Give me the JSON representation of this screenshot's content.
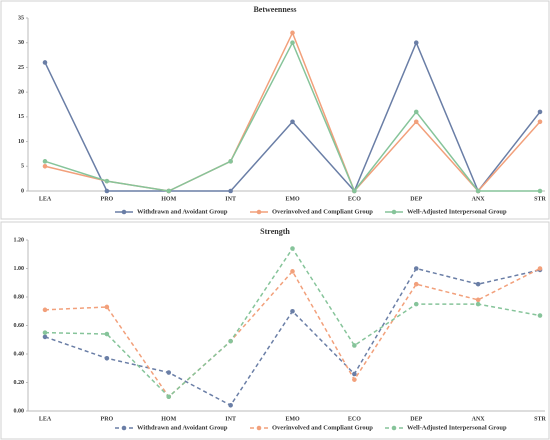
{
  "chart_data": [
    {
      "type": "line",
      "title": "Betweenness",
      "categories": [
        "LEA",
        "PRO",
        "HOM",
        "INT",
        "EMO",
        "ECO",
        "DEP",
        "ANX",
        "STR"
      ],
      "ylim": [
        0,
        35
      ],
      "yticks": [
        0,
        5,
        10,
        15,
        20,
        25,
        30,
        35
      ],
      "line_style": "solid",
      "series": [
        {
          "name": "Withdrawn and Avoidant Group",
          "color": "#6a7ea6",
          "values": [
            26,
            0,
            0,
            0,
            14,
            0,
            30,
            0,
            16
          ]
        },
        {
          "name": "Overinvolved and Compliant Group",
          "color": "#f2a07b",
          "values": [
            5,
            2,
            0,
            6,
            32,
            0,
            14,
            0,
            14
          ]
        },
        {
          "name": "Well-Adjusted Interpersonal Group",
          "color": "#86c49a",
          "values": [
            6,
            2,
            0,
            6,
            30,
            0,
            16,
            0,
            0
          ]
        }
      ]
    },
    {
      "type": "line",
      "title": "Strength",
      "categories": [
        "LEA",
        "PRO",
        "HOM",
        "INT",
        "EMO",
        "ECO",
        "DEP",
        "ANX",
        "STR"
      ],
      "ylim": [
        0,
        1.2
      ],
      "yticks": [
        {
          "value": 0,
          "label": "0.00"
        },
        {
          "value": 0.2,
          "label": "0.20"
        },
        {
          "value": 0.4,
          "label": "0.40"
        },
        {
          "value": 0.6,
          "label": "0.60"
        },
        {
          "value": 0.8,
          "label": "0.80"
        },
        {
          "value": 1,
          "label": "1.00"
        },
        {
          "value": 1.2,
          "label": "1.20"
        }
      ],
      "line_style": "dashed",
      "series": [
        {
          "name": "Withdrawn and Avoidant Group",
          "color": "#6a7ea6",
          "values": [
            0.52,
            0.37,
            0.27,
            0.04,
            0.7,
            0.26,
            1.0,
            0.89,
            0.99
          ]
        },
        {
          "name": "Overinvolved and Compliant Group",
          "color": "#f2a07b",
          "values": [
            0.71,
            0.73,
            0.1,
            0.49,
            0.98,
            0.22,
            0.89,
            0.78,
            1.0
          ]
        },
        {
          "name": "Well-Adjusted Interpersonal Group",
          "color": "#86c49a",
          "values": [
            0.55,
            0.54,
            0.1,
            0.49,
            1.14,
            0.46,
            0.75,
            0.75,
            0.67
          ]
        }
      ]
    }
  ]
}
